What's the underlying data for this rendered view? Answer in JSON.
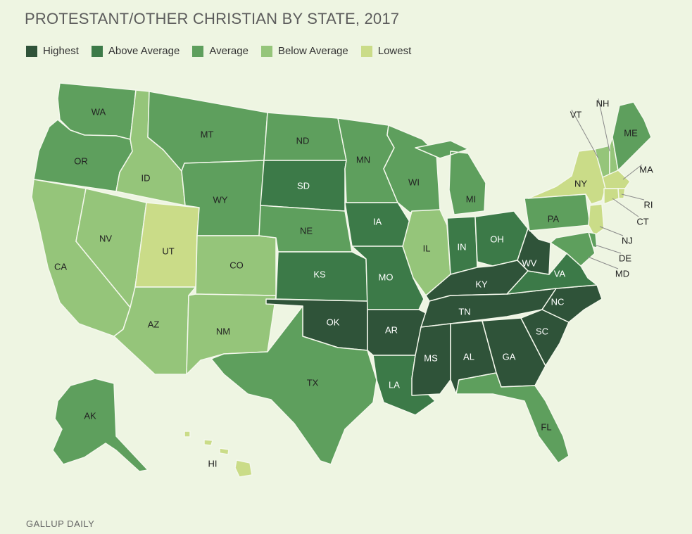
{
  "title": "PROTESTANT/OTHER CHRISTIAN BY STATE, 2017",
  "source": "GALLUP DAILY",
  "colors": {
    "highest": "#2f5339",
    "above": "#3c7a48",
    "average": "#5e9f5d",
    "below": "#95c57a",
    "lowest": "#cadc88",
    "background": "#eef5e2",
    "border": "#f4f8ec"
  },
  "legend": [
    {
      "key": "highest",
      "label": "Highest"
    },
    {
      "key": "above",
      "label": "Above Average"
    },
    {
      "key": "average",
      "label": "Average"
    },
    {
      "key": "below",
      "label": "Below Average"
    },
    {
      "key": "lowest",
      "label": "Lowest"
    }
  ],
  "states": [
    {
      "abbr": "WA",
      "category": "average"
    },
    {
      "abbr": "OR",
      "category": "average"
    },
    {
      "abbr": "CA",
      "category": "below"
    },
    {
      "abbr": "ID",
      "category": "below"
    },
    {
      "abbr": "NV",
      "category": "below"
    },
    {
      "abbr": "UT",
      "category": "lowest"
    },
    {
      "abbr": "AZ",
      "category": "below"
    },
    {
      "abbr": "MT",
      "category": "average"
    },
    {
      "abbr": "WY",
      "category": "average"
    },
    {
      "abbr": "CO",
      "category": "below"
    },
    {
      "abbr": "NM",
      "category": "below"
    },
    {
      "abbr": "ND",
      "category": "average"
    },
    {
      "abbr": "SD",
      "category": "above"
    },
    {
      "abbr": "NE",
      "category": "average"
    },
    {
      "abbr": "KS",
      "category": "above"
    },
    {
      "abbr": "OK",
      "category": "highest"
    },
    {
      "abbr": "TX",
      "category": "average"
    },
    {
      "abbr": "MN",
      "category": "average"
    },
    {
      "abbr": "IA",
      "category": "above"
    },
    {
      "abbr": "MO",
      "category": "above"
    },
    {
      "abbr": "AR",
      "category": "highest"
    },
    {
      "abbr": "LA",
      "category": "above"
    },
    {
      "abbr": "WI",
      "category": "average"
    },
    {
      "abbr": "IL",
      "category": "below"
    },
    {
      "abbr": "MI",
      "category": "average"
    },
    {
      "abbr": "IN",
      "category": "above"
    },
    {
      "abbr": "OH",
      "category": "above"
    },
    {
      "abbr": "KY",
      "category": "highest"
    },
    {
      "abbr": "TN",
      "category": "highest"
    },
    {
      "abbr": "MS",
      "category": "highest"
    },
    {
      "abbr": "AL",
      "category": "highest"
    },
    {
      "abbr": "GA",
      "category": "highest"
    },
    {
      "abbr": "FL",
      "category": "average"
    },
    {
      "abbr": "SC",
      "category": "highest"
    },
    {
      "abbr": "NC",
      "category": "highest"
    },
    {
      "abbr": "VA",
      "category": "above"
    },
    {
      "abbr": "WV",
      "category": "highest"
    },
    {
      "abbr": "PA",
      "category": "average"
    },
    {
      "abbr": "NY",
      "category": "lowest"
    },
    {
      "abbr": "VT",
      "category": "below"
    },
    {
      "abbr": "NH",
      "category": "below"
    },
    {
      "abbr": "ME",
      "category": "average"
    },
    {
      "abbr": "MA",
      "category": "lowest"
    },
    {
      "abbr": "RI",
      "category": "lowest"
    },
    {
      "abbr": "CT",
      "category": "lowest"
    },
    {
      "abbr": "NJ",
      "category": "lowest"
    },
    {
      "abbr": "DE",
      "category": "average"
    },
    {
      "abbr": "MD",
      "category": "average"
    },
    {
      "abbr": "AK",
      "category": "average"
    },
    {
      "abbr": "HI",
      "category": "lowest"
    }
  ]
}
